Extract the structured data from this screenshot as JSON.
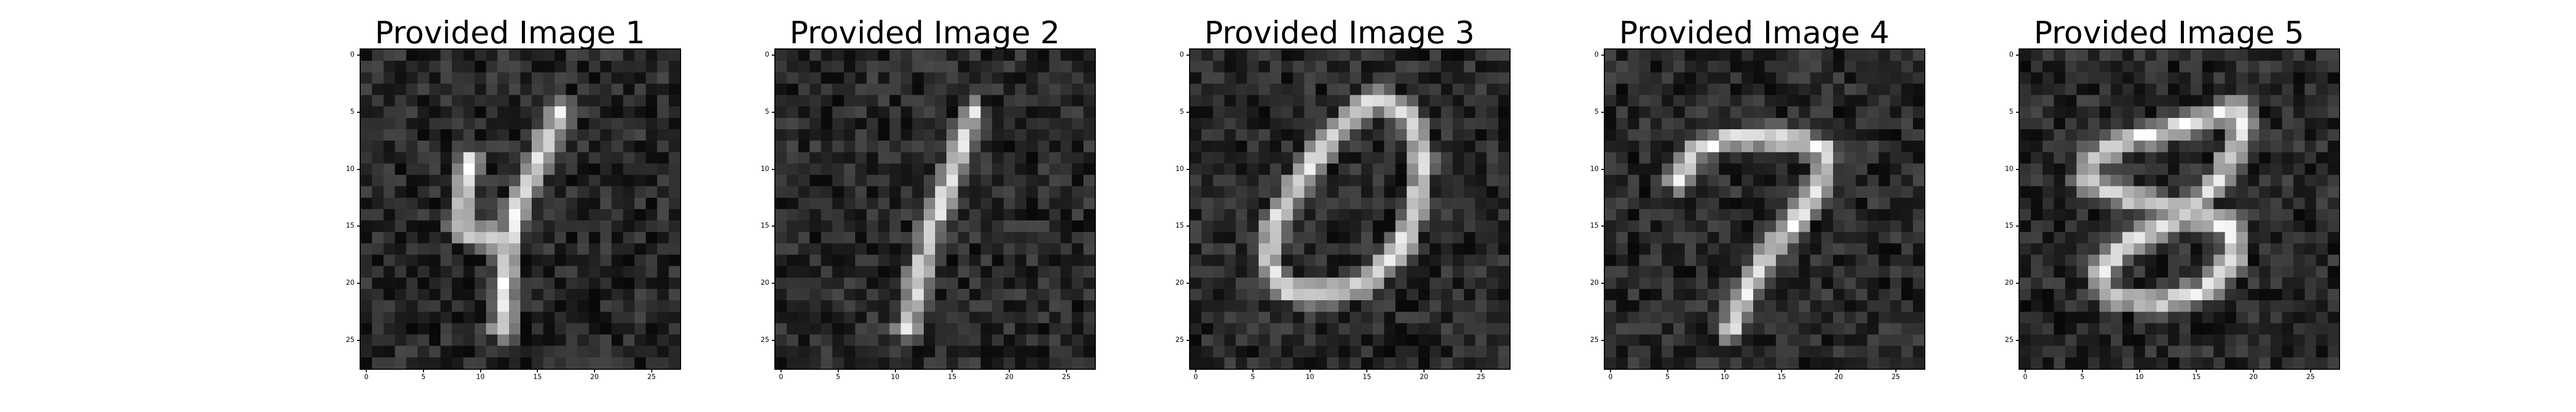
{
  "figure": {
    "tick_values": [
      "0",
      "5",
      "10",
      "15",
      "20",
      "25"
    ],
    "tick_positions": [
      0,
      5,
      10,
      15,
      20,
      25
    ],
    "grid_size": 28,
    "colormap": "gray"
  },
  "panels": [
    {
      "title": "Provided Image 1",
      "digit": "4",
      "strokes": [
        [
          [
            17.5,
            5.5
          ],
          [
            15.6,
            9.5
          ],
          [
            13.8,
            13.5
          ],
          [
            12.8,
            18.5
          ],
          [
            12.5,
            24.5
          ]
        ],
        [
          [
            9.5,
            9.8
          ],
          [
            9.0,
            12.5
          ],
          [
            8.8,
            15.5
          ]
        ],
        [
          [
            8.8,
            15.8
          ],
          [
            11.0,
            16.5
          ],
          [
            13.0,
            16.6
          ]
        ]
      ]
    },
    {
      "title": "Provided Image 2",
      "digit": "1",
      "strokes": [
        [
          [
            17.3,
            5.5
          ],
          [
            15.6,
            10.5
          ],
          [
            13.8,
            15.5
          ],
          [
            12.6,
            20.0
          ],
          [
            11.6,
            24.5
          ]
        ]
      ]
    },
    {
      "title": "Provided Image 3",
      "digit": "0",
      "strokes": [
        [
          [
            16.8,
            4.5
          ],
          [
            19.2,
            5.8
          ],
          [
            20.3,
            9.0
          ],
          [
            20.0,
            13.5
          ],
          [
            18.5,
            17.5
          ],
          [
            15.5,
            20.5
          ],
          [
            11.5,
            21.5
          ],
          [
            8.2,
            21.0
          ],
          [
            6.8,
            18.5
          ],
          [
            7.5,
            15.0
          ],
          [
            10.0,
            11.0
          ],
          [
            13.0,
            7.0
          ],
          [
            15.5,
            4.8
          ],
          [
            16.8,
            4.5
          ]
        ]
      ]
    },
    {
      "title": "Provided Image 4",
      "digit": "7",
      "strokes": [
        [
          [
            6.5,
            11.5
          ],
          [
            7.8,
            8.8
          ],
          [
            10.5,
            8.0
          ],
          [
            14.0,
            7.7
          ],
          [
            17.0,
            8.0
          ],
          [
            19.3,
            9.0
          ]
        ],
        [
          [
            19.3,
            9.0
          ],
          [
            18.6,
            12.5
          ],
          [
            16.0,
            16.0
          ],
          [
            13.3,
            19.5
          ],
          [
            11.8,
            22.5
          ],
          [
            11.0,
            24.5
          ]
        ]
      ]
    },
    {
      "title": "Provided Image 5",
      "digit": "8",
      "strokes": [
        [
          [
            19.5,
            5.0
          ],
          [
            15.0,
            6.5
          ],
          [
            9.5,
            8.0
          ],
          [
            6.3,
            9.5
          ],
          [
            5.8,
            11.5
          ],
          [
            9.5,
            13.0
          ],
          [
            14.5,
            14.2
          ],
          [
            18.5,
            15.5
          ],
          [
            19.0,
            18.2
          ],
          [
            16.5,
            21.0
          ],
          [
            12.0,
            22.2
          ],
          [
            8.0,
            21.8
          ],
          [
            6.8,
            19.8
          ],
          [
            9.5,
            17.0
          ],
          [
            14.0,
            14.8
          ],
          [
            17.5,
            11.5
          ],
          [
            19.5,
            7.5
          ],
          [
            19.5,
            5.0
          ]
        ]
      ]
    }
  ]
}
